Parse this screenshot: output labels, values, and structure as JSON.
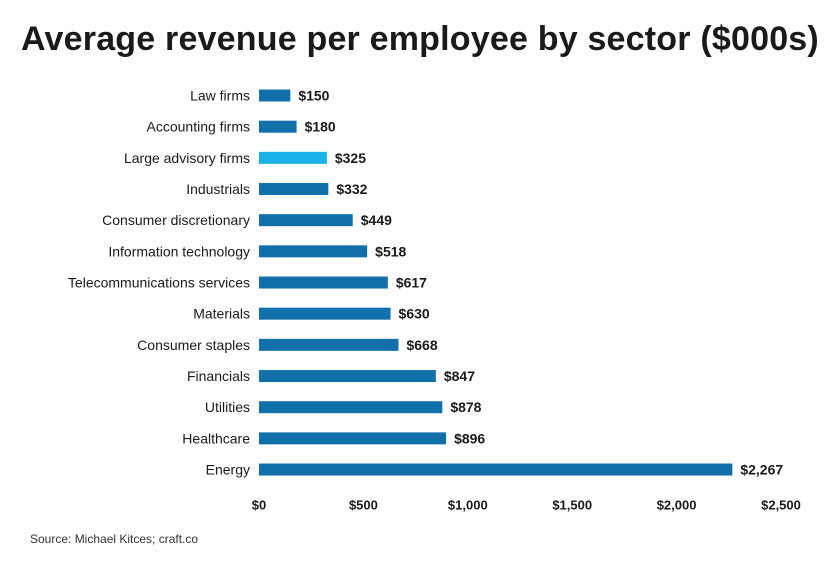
{
  "chart_data": {
    "type": "bar",
    "orientation": "horizontal",
    "title": "Average revenue per employee by sector ($000s)",
    "categories": [
      "Law firms",
      "Accounting firms",
      "Large advisory firms",
      "Industrials",
      "Consumer discretionary",
      "Information technology",
      "Telecommunications services",
      "Materials",
      "Consumer staples",
      "Financials",
      "Utilities",
      "Healthcare",
      "Energy"
    ],
    "values": [
      150,
      180,
      325,
      332,
      449,
      518,
      617,
      630,
      668,
      847,
      878,
      896,
      2267
    ],
    "value_labels": [
      "$150",
      "$180",
      "$325",
      "$332",
      "$449",
      "$518",
      "$617",
      "$630",
      "$668",
      "$847",
      "$878",
      "$896",
      "$2,267"
    ],
    "highlight": "Large advisory firms",
    "xlim": [
      0,
      2500
    ],
    "xticks": [
      0,
      500,
      1000,
      1500,
      2000,
      2500
    ],
    "xtick_labels": [
      "$0",
      "$500",
      "$1,000",
      "$1,500",
      "$2,000",
      "$2,500"
    ],
    "xlabel": "",
    "ylabel": "",
    "grid": false,
    "colors": {
      "bar": "#1170aa",
      "highlight": "#1ab0e8"
    }
  },
  "source": "Source: Michael Kitces; craft.co"
}
